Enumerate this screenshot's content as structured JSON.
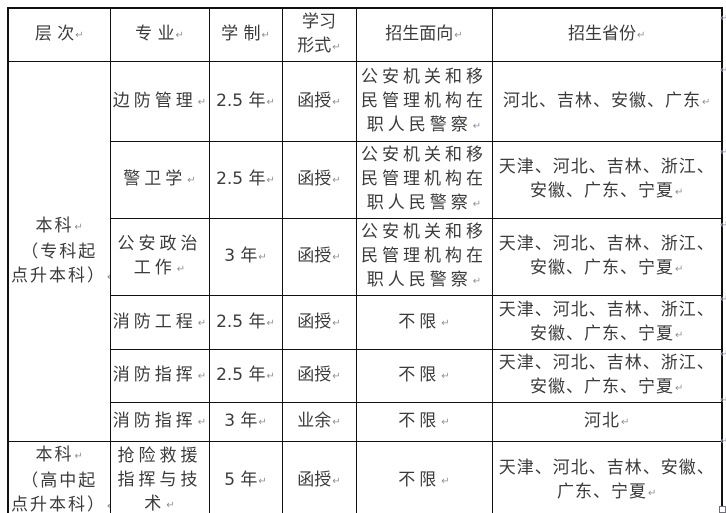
{
  "marks": {
    "pilcrow": "↵"
  },
  "colors": {
    "border": "#111111",
    "text": "#3b3b3b",
    "mark": "#8a90a2",
    "background": "#ffffff"
  },
  "table": {
    "headers": {
      "level": [
        "层 次↵"
      ],
      "major": [
        "专 业↵"
      ],
      "duration": [
        "学 制↵"
      ],
      "form": [
        "学习",
        "形式↵"
      ],
      "target": [
        "招生面向↵"
      ],
      "provinces": [
        "招生省份↵"
      ]
    },
    "level_groups": [
      {
        "lines": [
          "本科↵",
          "（专科起",
          "点升本科）↵"
        ],
        "rowspan": 6
      },
      {
        "lines": [
          "本科↵",
          "（高中起",
          "点升本科）↵"
        ],
        "rowspan": 1
      }
    ],
    "rows": [
      {
        "major": [
          "边防管理↵"
        ],
        "duration": [
          "2.5 年↵"
        ],
        "form": [
          "函授↵"
        ],
        "target": [
          "公安机关和移",
          "民管理机构在",
          "职人民警察↵"
        ],
        "provinces": [
          "河北、吉林、安徽、广东↵"
        ]
      },
      {
        "major": [
          "警卫学↵"
        ],
        "duration": [
          "2.5 年↵"
        ],
        "form": [
          "函授↵"
        ],
        "target": [
          "公安机关和移",
          "民管理机构在",
          "职人民警察↵"
        ],
        "provinces": [
          "天津、河北、吉林、浙江、",
          "安徽、广东、宁夏↵"
        ]
      },
      {
        "major": [
          "公安政治",
          "工作↵"
        ],
        "duration": [
          "3 年↵"
        ],
        "form": [
          "函授↵"
        ],
        "target": [
          "公安机关和移",
          "民管理机构在",
          "职人民警察↵"
        ],
        "provinces": [
          "天津、河北、吉林、浙江、",
          "安徽、广东、宁夏↵"
        ]
      },
      {
        "major": [
          "消防工程↵"
        ],
        "duration": [
          "2.5 年↵"
        ],
        "form": [
          "函授↵"
        ],
        "target": [
          "不限↵"
        ],
        "provinces": [
          "天津、河北、吉林、浙江、",
          "安徽、广东、宁夏↵"
        ]
      },
      {
        "major": [
          "消防指挥↵"
        ],
        "duration": [
          "2.5 年↵"
        ],
        "form": [
          "函授↵"
        ],
        "target": [
          "不限↵"
        ],
        "provinces": [
          "天津、河北、吉林、浙江、",
          "安徽、广东、宁夏↵"
        ]
      },
      {
        "major": [
          "消防指挥↵"
        ],
        "duration": [
          "3 年↵"
        ],
        "form": [
          "业余↵"
        ],
        "target": [
          "不限↵"
        ],
        "provinces": [
          "河北↵"
        ]
      },
      {
        "major": [
          "抢险救援",
          "指挥与技",
          "术↵"
        ],
        "duration": [
          "5 年↵"
        ],
        "form": [
          "函授↵"
        ],
        "target": [
          "不限↵"
        ],
        "provinces": [
          "天津、河北、吉林、安徽、",
          "广东、宁夏↵"
        ]
      }
    ]
  }
}
